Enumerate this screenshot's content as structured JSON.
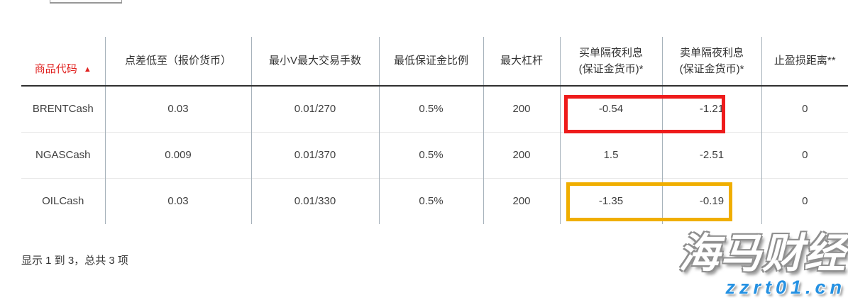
{
  "table": {
    "columns": [
      {
        "label": "商品代码",
        "sortable": true,
        "sort_direction": "asc"
      },
      {
        "label": "点差低至（报价货币）"
      },
      {
        "label": "最小V最大交易手数"
      },
      {
        "label": "最低保证金比例"
      },
      {
        "label": "最大杠杆"
      },
      {
        "label": "买单隔夜利息\n(保证金货币)*"
      },
      {
        "label": "卖单隔夜利息\n(保证金货币)*"
      },
      {
        "label": "止盈损距离**"
      }
    ],
    "rows": [
      [
        "BRENTCash",
        "0.03",
        "0.01/270",
        "0.5%",
        "200",
        "-0.54",
        "-1.21",
        "0"
      ],
      [
        "NGASCash",
        "0.009",
        "0.01/370",
        "0.5%",
        "200",
        "1.5",
        "-2.51",
        "0"
      ],
      [
        "OILCash",
        "0.03",
        "0.01/330",
        "0.5%",
        "200",
        "-1.35",
        "-0.19",
        "0"
      ]
    ],
    "highlights": [
      {
        "row": "BRENTCash",
        "cells": [
          "买单隔夜利息",
          "卖单隔夜利息"
        ],
        "values": [
          "-0.54",
          "-1.21"
        ],
        "color": "#ee1b1b"
      },
      {
        "row": "OILCash",
        "cells": [
          "买单隔夜利息",
          "卖单隔夜利息"
        ],
        "values": [
          "-1.35",
          "-0.19"
        ],
        "color": "#f0ae00"
      }
    ]
  },
  "footer": {
    "summary": "显示 1 到 3，总共 3 项"
  },
  "watermark": {
    "brand": "海马财经",
    "site": "zzrt01.cn",
    "site_color": "#2591e2"
  },
  "icons": {
    "sort_asc": "▲"
  },
  "colors": {
    "header_accent": "#e0211f",
    "highlight_red": "#ee1b1b",
    "highlight_yellow": "#f0ae00",
    "grid_vertical": "#a6b2bb",
    "grid_row": "#e9e9e9",
    "header_border": "#2f2f2f"
  }
}
